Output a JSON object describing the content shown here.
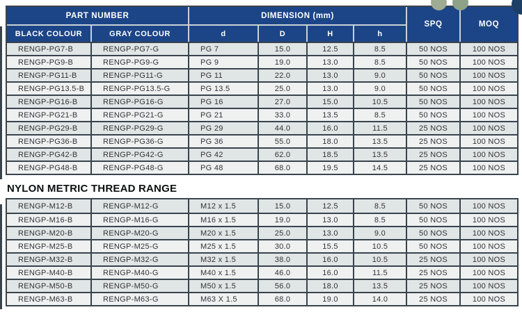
{
  "colors": {
    "header_bg": "#1c4587",
    "header_divider": "#c9d1d7",
    "border_dark": "#39434c",
    "row_gray": "#e0e5e6",
    "row_white": "#eff1f1",
    "text_dark": "#313335",
    "decor_green1": "#a0ab93",
    "decor_green2": "#8da287",
    "decor_navy": "#1d3f66"
  },
  "icons": {
    "decor_circles": [
      "green-circle",
      "green-circle",
      "navy-circle"
    ]
  },
  "table1": {
    "headers": {
      "part_number": "PART NUMBER",
      "dimension": "DIMENSION (mm)",
      "spq": "SPQ",
      "moq": "MOQ",
      "black": "BLACK COLOUR",
      "gray": "GRAY COLOUR",
      "d": "d",
      "D": "D",
      "H": "H",
      "h": "h"
    },
    "rows": [
      [
        "RENGP-PG7-B",
        "RENGP-PG7-G",
        "PG 7",
        "15.0",
        "12.5",
        "8.5",
        "50 NOS",
        "100 NOS"
      ],
      [
        "RENGP-PG9-B",
        "RENGP-PG9-G",
        "PG 9",
        "19.0",
        "13.0",
        "8.5",
        "50 NOS",
        "100 NOS"
      ],
      [
        "RENGP-PG11-B",
        "RENGP-PG11-G",
        "PG 11",
        "22.0",
        "13.0",
        "9.0",
        "50 NOS",
        "100 NOS"
      ],
      [
        "RENGP-PG13.5-B",
        "RENGP-PG13.5-G",
        "PG 13.5",
        "25.0",
        "13.0",
        "9.0",
        "50 NOS",
        "100 NOS"
      ],
      [
        "RENGP-PG16-B",
        "RENGP-PG16-G",
        "PG 16",
        "27.0",
        "15.0",
        "10.5",
        "50 NOS",
        "100 NOS"
      ],
      [
        "RENGP-PG21-B",
        "RENGP-PG21-G",
        "PG 21",
        "33.0",
        "13.5",
        "8.5",
        "50 NOS",
        "100 NOS"
      ],
      [
        "RENGP-PG29-B",
        "RENGP-PG29-G",
        "PG 29",
        "44.0",
        "16.0",
        "11.5",
        "25 NOS",
        "100 NOS"
      ],
      [
        "RENGP-PG36-B",
        "RENGP-PG36-G",
        "PG 36",
        "55.0",
        "18.0",
        "13.5",
        "25 NOS",
        "100 NOS"
      ],
      [
        "RENGP-PG42-B",
        "RENGP-PG42-G",
        "PG 42",
        "62.0",
        "18.5",
        "13.5",
        "25 NOS",
        "100 NOS"
      ],
      [
        "RENGP-PG48-B",
        "RENGP-PG48-G",
        "PG 48",
        "68.0",
        "19.5",
        "14.5",
        "25 NOS",
        "100 NOS"
      ]
    ]
  },
  "section2": {
    "title": "NYLON METRIC THREAD RANGE"
  },
  "table2": {
    "rows": [
      [
        "RENGP-M12-B",
        "RENGP-M12-G",
        "M12 x 1.5",
        "15.0",
        "12.5",
        "8.5",
        "50 NOS",
        "100 NOS"
      ],
      [
        "RENGP-M16-B",
        "RENGP-M16-G",
        "M16 x 1.5",
        "19.0",
        "13.0",
        "8.5",
        "50 NOS",
        "100 NOS"
      ],
      [
        "RENGP-M20-B",
        "RENGP-M20-G",
        "M20 x 1.5",
        "25.0",
        "13.0",
        "9.0",
        "50 NOS",
        "100 NOS"
      ],
      [
        "RENGP-M25-B",
        "RENGP-M25-G",
        "M25 x 1.5",
        "30.0",
        "15.5",
        "10.5",
        "50 NOS",
        "100 NOS"
      ],
      [
        "RENGP-M32-B",
        "RENGP-M32-G",
        "M32 x 1.5",
        "38.0",
        "16.0",
        "10.5",
        "25 NOS",
        "100 NOS"
      ],
      [
        "RENGP-M40-B",
        "RENGP-M40-G",
        "M40 x 1.5",
        "46.0",
        "16.0",
        "11.5",
        "25 NOS",
        "100 NOS"
      ],
      [
        "RENGP-M50-B",
        "RENGP-M50-G",
        "M50 x 1.5",
        "56.0",
        "18.0",
        "13.5",
        "25 NOS",
        "100 NOS"
      ],
      [
        "RENGP-M63-B",
        "RENGP-M63-G",
        "M63 X 1.5",
        "68.0",
        "19.0",
        "14.0",
        "25 NOS",
        "100 NOS"
      ]
    ]
  }
}
